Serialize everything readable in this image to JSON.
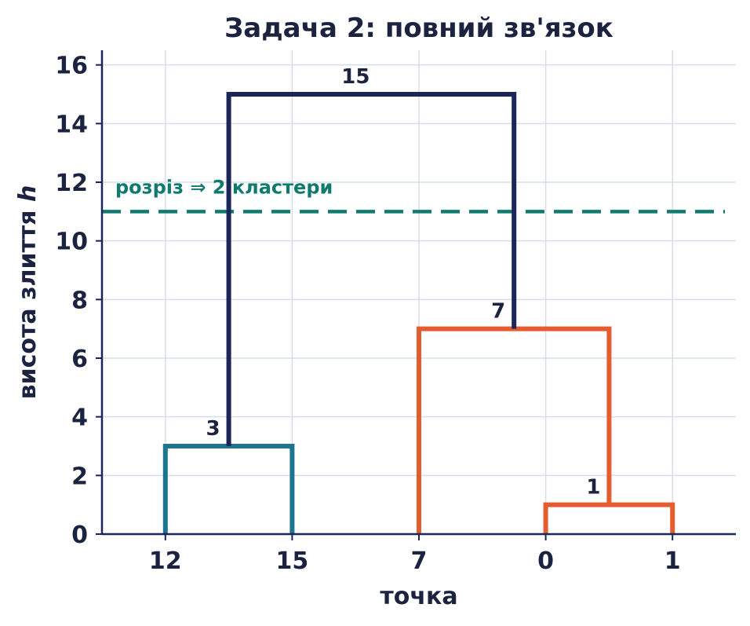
{
  "chart_data": {
    "type": "dendrogram",
    "title": "Задача 2: повний зв'язок",
    "xlabel": "точка",
    "ylabel_main": "висота злиття ",
    "ylabel_var": "h",
    "ylim": [
      0,
      16.5
    ],
    "yticks": [
      0,
      2,
      4,
      6,
      8,
      10,
      12,
      14,
      16
    ],
    "ytick_labels": [
      "0",
      "2",
      "4",
      "6",
      "8",
      "10",
      "12",
      "14",
      "16"
    ],
    "leaves": [
      "12",
      "15",
      "7",
      "0",
      "1"
    ],
    "grid": true,
    "merges": [
      {
        "left": "12",
        "right": "15",
        "height": 3,
        "label": "3",
        "color": "#1b7590"
      },
      {
        "left": "0",
        "right": "1",
        "height": 1,
        "label": "1",
        "color": "#e55c30"
      },
      {
        "left": "7",
        "right": "{0,1}",
        "height": 7,
        "label": "7",
        "color": "#e55c30"
      },
      {
        "left": "{12,15}",
        "right": "{7,0,1}",
        "height": 15,
        "label": "15",
        "color": "#1c2559"
      }
    ],
    "cut": {
      "height": 11,
      "label": "розріз ⇒ 2 кластери",
      "color": "#117a6e"
    }
  },
  "colors": {
    "text": "#1c2340",
    "grid": "#d9dde9",
    "axis": "#1c2559"
  }
}
